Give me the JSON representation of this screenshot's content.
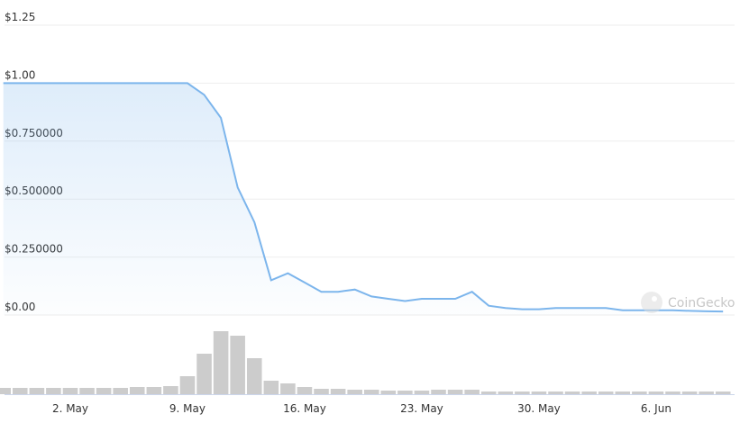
{
  "chart_data": {
    "type": "line",
    "x": [
      "28. Apr",
      "29. Apr",
      "30. Apr",
      "1. May",
      "2. May",
      "3. May",
      "4. May",
      "5. May",
      "6. May",
      "7. May",
      "8. May",
      "9. May",
      "10. May",
      "11. May",
      "12. May",
      "13. May",
      "14. May",
      "15. May",
      "16. May",
      "17. May",
      "18. May",
      "19. May",
      "20. May",
      "21. May",
      "22. May",
      "23. May",
      "24. May",
      "25. May",
      "26. May",
      "27. May",
      "28. May",
      "29. May",
      "30. May",
      "31. May",
      "1. Jun",
      "2. Jun",
      "3. Jun",
      "4. Jun",
      "5. Jun",
      "6. Jun",
      "7. Jun",
      "8. Jun",
      "9. Jun",
      "10. Jun"
    ],
    "series": [
      {
        "name": "Price",
        "color": "#7cb5ec",
        "values": [
          1.0,
          1.0,
          1.0,
          1.0,
          1.0,
          1.0,
          1.0,
          1.0,
          1.0,
          1.0,
          1.0,
          1.0,
          0.95,
          0.85,
          0.55,
          0.4,
          0.15,
          0.18,
          0.14,
          0.1,
          0.1,
          0.11,
          0.08,
          0.07,
          0.06,
          0.07,
          0.07,
          0.07,
          0.1,
          0.04,
          0.03,
          0.025,
          0.025,
          0.03,
          0.03,
          0.03,
          0.03,
          0.02,
          0.02,
          0.02,
          0.02,
          0.018,
          0.016,
          0.015
        ]
      }
    ],
    "volume": [
      7,
      7,
      7,
      7,
      7,
      7,
      7,
      7,
      8,
      8,
      9,
      20,
      45,
      70,
      65,
      40,
      15,
      12,
      8,
      6,
      6,
      5,
      5,
      4,
      4,
      4,
      5,
      5,
      5,
      3,
      3,
      3,
      3,
      3,
      3,
      3,
      3,
      3,
      3,
      3,
      3,
      3,
      3,
      3
    ],
    "xticks": [
      "2. May",
      "9. May",
      "16. May",
      "23. May",
      "30. May",
      "6. Jun"
    ],
    "ylim": [
      0,
      1.25
    ],
    "yticks": [
      {
        "value": 0,
        "label": "$0.00"
      },
      {
        "value": 0.25,
        "label": "$0.250000"
      },
      {
        "value": 0.5,
        "label": "$0.500000"
      },
      {
        "value": 0.75,
        "label": "$0.750000"
      },
      {
        "value": 1,
        "label": "$1.00"
      },
      {
        "value": 1.25,
        "label": "$1.25"
      }
    ],
    "grid": true,
    "watermark": "CoinGecko"
  }
}
